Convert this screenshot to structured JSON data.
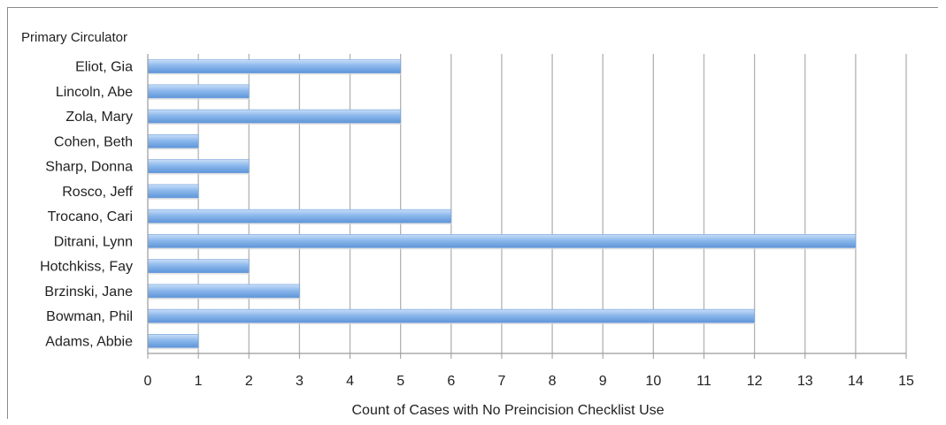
{
  "chart_data": {
    "type": "bar",
    "orientation": "horizontal",
    "category_axis_title": "Primary Circulator",
    "xlabel": "Count of Cases with No Preincision Checklist Use",
    "categories": [
      "Eliot, Gia",
      "Lincoln, Abe",
      "Zola, Mary",
      "Cohen, Beth",
      "Sharp, Donna",
      "Rosco, Jeff",
      "Trocano, Cari",
      "Ditrani, Lynn",
      "Hotchkiss, Fay",
      "Brzinski, Jane",
      "Bowman, Phil",
      "Adams, Abbie"
    ],
    "values": [
      5,
      2,
      5,
      1,
      2,
      1,
      6,
      14,
      2,
      3,
      12,
      1
    ],
    "xlim": [
      0,
      15
    ],
    "x_ticks": [
      "0",
      "1",
      "2",
      "3",
      "4",
      "5",
      "6",
      "7",
      "8",
      "9",
      "10",
      "11",
      "12",
      "13",
      "14",
      "15"
    ],
    "grid": true,
    "legend": "none",
    "bar_color": "#8cb8ec"
  }
}
